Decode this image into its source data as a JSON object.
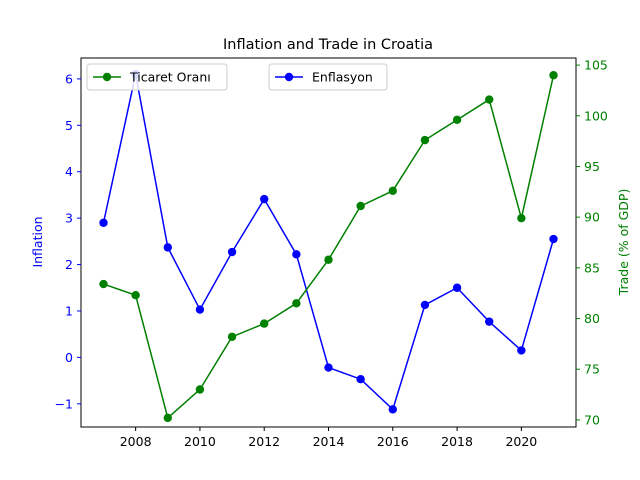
{
  "chart_data": {
    "type": "line",
    "title": "Inflation and Trade in Croatia",
    "x": [
      2007,
      2008,
      2009,
      2010,
      2011,
      2012,
      2013,
      2014,
      2015,
      2016,
      2017,
      2018,
      2019,
      2020,
      2021
    ],
    "xlim": [
      2006.3,
      2021.7
    ],
    "x_ticks": [
      "2008",
      "2010",
      "2012",
      "2014",
      "2016",
      "2018",
      "2020"
    ],
    "grid": false,
    "y_left": {
      "label": "Inflation",
      "lim": [
        -1.5,
        6.45
      ],
      "ticks": [
        "−1",
        "0",
        "1",
        "2",
        "3",
        "4",
        "5",
        "6"
      ],
      "color": "#0000ff"
    },
    "y_right": {
      "label": "Trade (% of GDP)",
      "lim": [
        69.3,
        105.7
      ],
      "ticks": [
        "70",
        "75",
        "80",
        "85",
        "90",
        "95",
        "100",
        "105"
      ],
      "color": "#008000"
    },
    "series": [
      {
        "name": "Enflasyon",
        "axis": "left",
        "color": "#0000ff",
        "values": [
          2.9,
          6.1,
          2.37,
          1.03,
          2.27,
          3.41,
          2.22,
          -0.22,
          -0.47,
          -1.12,
          1.13,
          1.5,
          0.77,
          0.15,
          2.55
        ]
      },
      {
        "name": "Ticaret Oranı",
        "axis": "right",
        "color": "#008000",
        "values": [
          83.4,
          82.3,
          70.2,
          73.0,
          78.2,
          79.5,
          81.5,
          85.8,
          91.1,
          92.6,
          97.6,
          99.6,
          101.6,
          89.9,
          104.0
        ]
      }
    ],
    "legends": [
      {
        "placement": "upper-left",
        "entries": [
          "Ticaret Oranı"
        ]
      },
      {
        "placement": "upper-center",
        "entries": [
          "Enflasyon"
        ]
      }
    ]
  }
}
